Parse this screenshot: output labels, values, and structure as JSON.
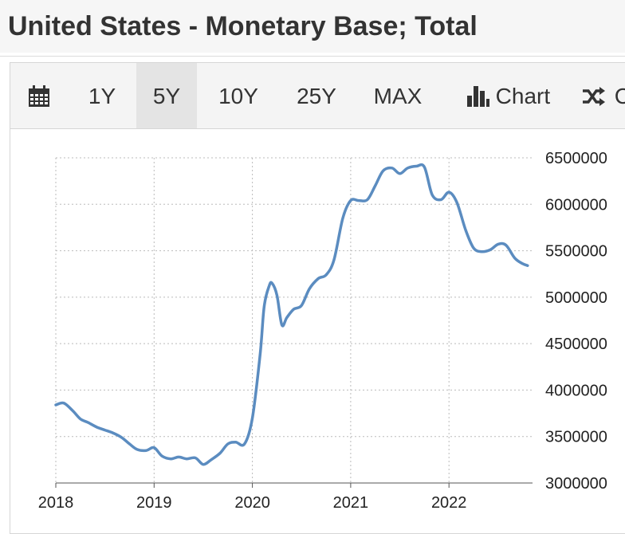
{
  "page": {
    "title": "United States - Monetary Base; Total"
  },
  "toolbar": {
    "items": [
      {
        "label": "",
        "icon": "calendar-icon"
      },
      {
        "label": "1Y"
      },
      {
        "label": "5Y",
        "active": true
      },
      {
        "label": "10Y"
      },
      {
        "label": "25Y"
      },
      {
        "label": "MAX"
      },
      {
        "label": "Chart",
        "icon": "bar-chart-icon"
      },
      {
        "label": "C",
        "icon": "shuffle-icon"
      }
    ]
  },
  "colors": {
    "line": "#5b8cc0",
    "grid": "#bbbbbb",
    "text": "#333333",
    "toolbar_bg": "#f4f4f4",
    "active_bg": "#e4e4e4"
  },
  "chart_data": {
    "type": "line",
    "title": "United States - Monetary Base; Total",
    "xlabel": "",
    "ylabel": "",
    "x_ticks": [
      "2018",
      "2019",
      "2020",
      "2021",
      "2022"
    ],
    "y_ticks": [
      "6500000",
      "6000000",
      "5500000",
      "5000000",
      "4500000",
      "4000000",
      "3500000",
      "3000000"
    ],
    "xlim": [
      2018.0,
      2022.85
    ],
    "ylim": [
      3000000,
      6500000
    ],
    "series": [
      {
        "name": "Monetary Base; Total",
        "x": [
          2018.0,
          2018.08,
          2018.17,
          2018.25,
          2018.33,
          2018.42,
          2018.5,
          2018.58,
          2018.67,
          2018.75,
          2018.83,
          2018.92,
          2019.0,
          2019.08,
          2019.17,
          2019.25,
          2019.33,
          2019.42,
          2019.5,
          2019.58,
          2019.67,
          2019.75,
          2019.83,
          2019.92,
          2020.0,
          2020.08,
          2020.12,
          2020.17,
          2020.2,
          2020.25,
          2020.3,
          2020.35,
          2020.42,
          2020.5,
          2020.58,
          2020.67,
          2020.75,
          2020.83,
          2020.92,
          2021.0,
          2021.08,
          2021.17,
          2021.25,
          2021.33,
          2021.42,
          2021.5,
          2021.58,
          2021.67,
          2021.75,
          2021.83,
          2021.92,
          2022.0,
          2022.08,
          2022.17,
          2022.25,
          2022.33,
          2022.42,
          2022.5,
          2022.58,
          2022.67,
          2022.75,
          2022.8
        ],
        "values": [
          3840000,
          3860000,
          3780000,
          3690000,
          3650000,
          3600000,
          3570000,
          3540000,
          3490000,
          3420000,
          3360000,
          3350000,
          3380000,
          3290000,
          3260000,
          3280000,
          3260000,
          3270000,
          3200000,
          3250000,
          3320000,
          3420000,
          3440000,
          3420000,
          3700000,
          4400000,
          4900000,
          5120000,
          5150000,
          5020000,
          4700000,
          4780000,
          4870000,
          4910000,
          5090000,
          5200000,
          5240000,
          5400000,
          5850000,
          6040000,
          6040000,
          6050000,
          6200000,
          6360000,
          6390000,
          6330000,
          6390000,
          6410000,
          6400000,
          6100000,
          6050000,
          6130000,
          6020000,
          5720000,
          5530000,
          5490000,
          5510000,
          5570000,
          5560000,
          5420000,
          5360000,
          5340000
        ]
      }
    ]
  }
}
